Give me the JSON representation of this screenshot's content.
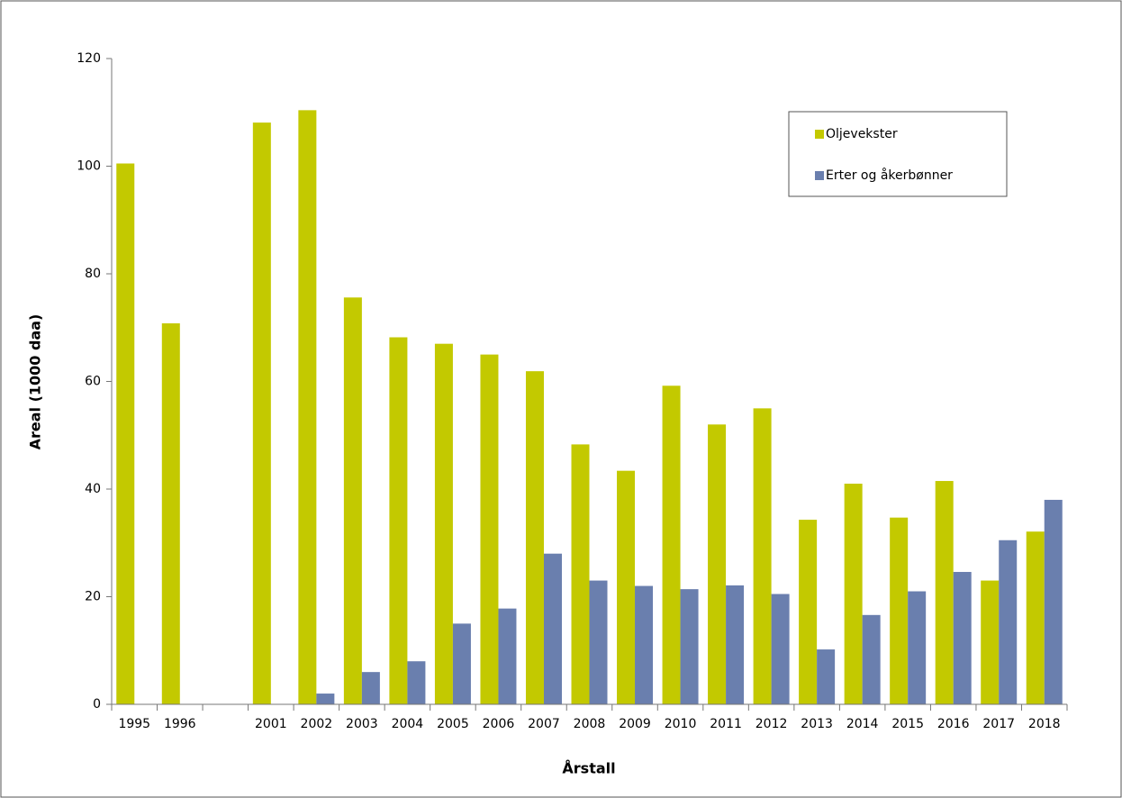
{
  "chart_data": {
    "type": "bar",
    "y_label": "Areal (1000 daa)",
    "x_label": "Årstall",
    "categories": [
      "1995",
      "1996",
      null,
      "2001",
      "2002",
      "2003",
      "2004",
      "2005",
      "2006",
      "2007",
      "2008",
      "2009",
      "2010",
      "2011",
      "2012",
      "2013",
      "2014",
      "2015",
      "2016",
      "2017",
      "2018"
    ],
    "series": [
      {
        "name": "Oljevekster",
        "color": "#c3c900",
        "values": [
          100.5,
          70.8,
          null,
          108.1,
          110.4,
          75.6,
          68.2,
          67.0,
          65.0,
          61.9,
          48.3,
          43.4,
          59.2,
          52.0,
          55.0,
          34.3,
          41.0,
          34.7,
          41.5,
          23.0,
          32.1
        ]
      },
      {
        "name": "Erter og åkerbønner",
        "color": "#6a7fae",
        "values": [
          null,
          null,
          null,
          null,
          2.0,
          6.0,
          8.0,
          15.0,
          17.8,
          28.0,
          23.0,
          22.0,
          21.4,
          22.1,
          20.5,
          10.2,
          16.6,
          21.0,
          24.6,
          30.5,
          38.0
        ]
      }
    ],
    "ylim": [
      0,
      120
    ],
    "yticks": [
      0,
      20,
      40,
      60,
      80,
      100,
      120
    ],
    "legend": "upper-right"
  }
}
